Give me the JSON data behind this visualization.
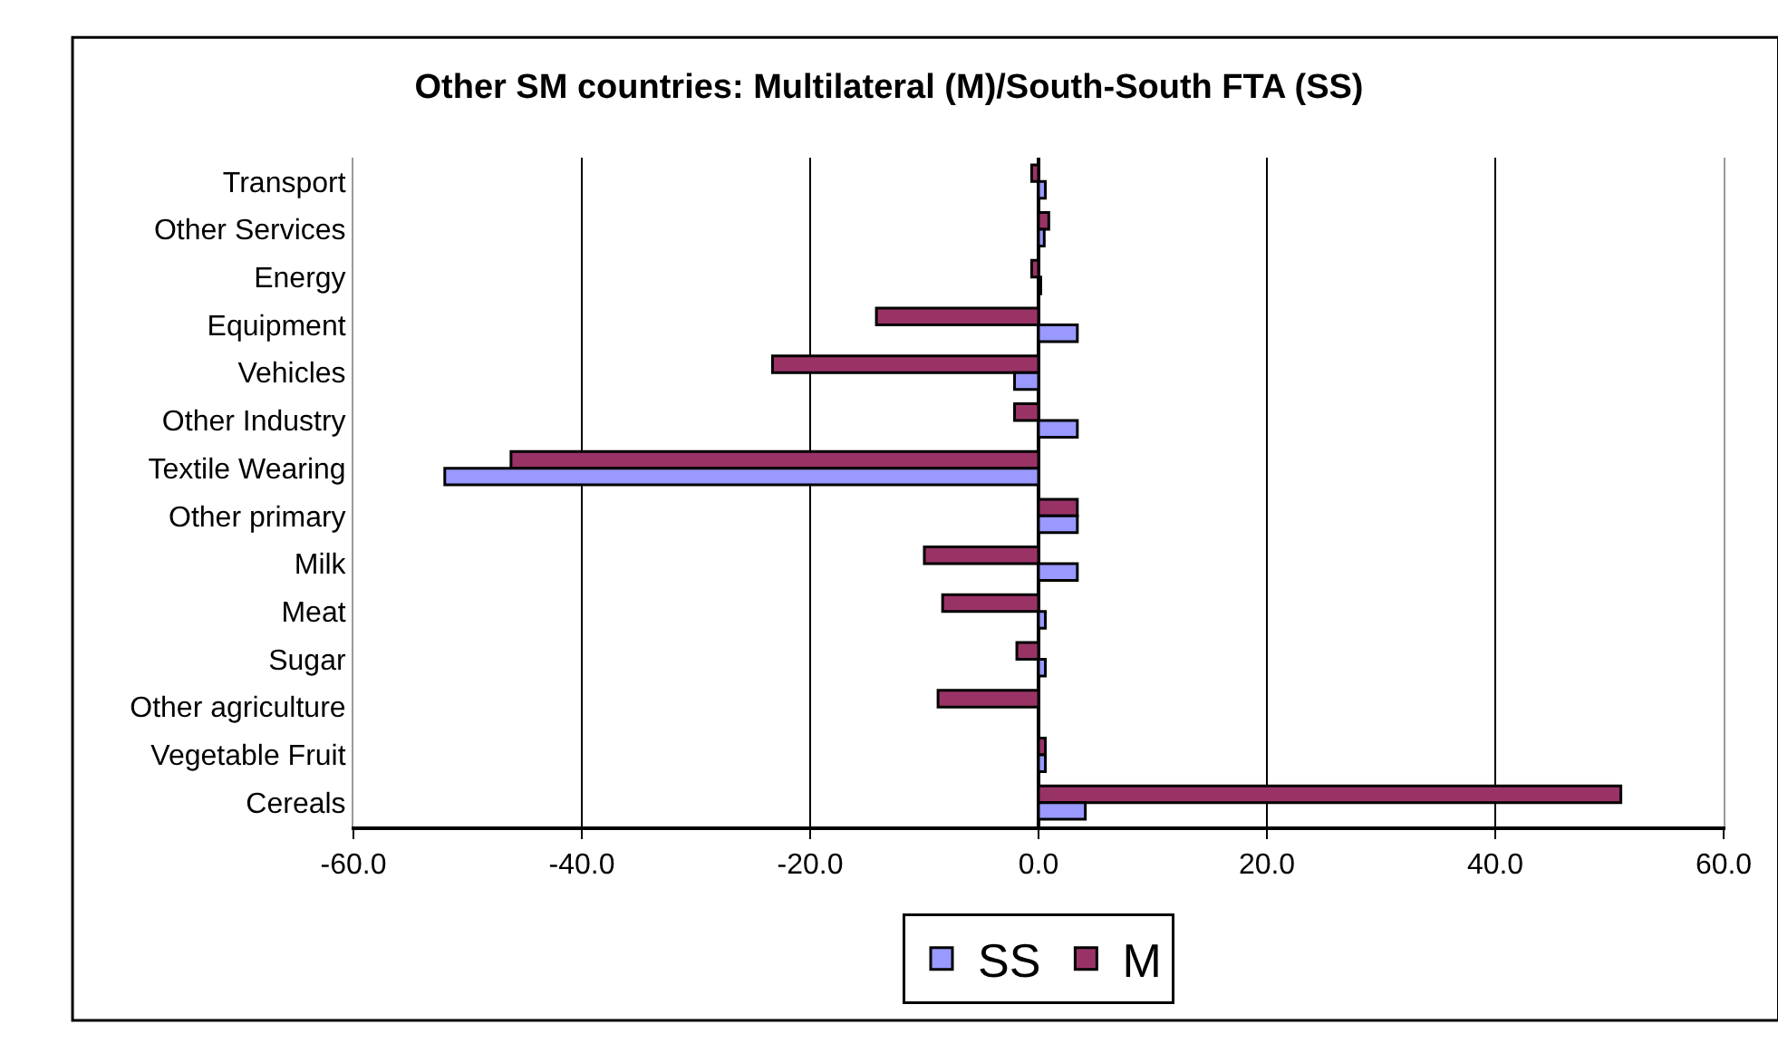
{
  "chart_data": {
    "type": "bar",
    "orientation": "horizontal",
    "title": "Other SM countries: Multilateral (M)/South-South FTA (SS)",
    "categories": [
      "Transport",
      "Other Services",
      "Energy",
      "Equipment",
      "Vehicles",
      "Other Industry",
      "Textile Wearing",
      "Other primary",
      "Milk",
      "Meat",
      "Sugar",
      "Other agriculture",
      "Vegetable Fruit",
      "Cereals"
    ],
    "series": [
      {
        "name": "SS",
        "color": "#9999ff",
        "values": [
          0.6,
          0.5,
          0.2,
          3.4,
          -2.1,
          3.4,
          -52.0,
          3.4,
          3.4,
          0.6,
          0.6,
          null,
          0.6,
          4.1
        ]
      },
      {
        "name": "M",
        "color": "#993366",
        "values": [
          -0.6,
          0.9,
          -0.6,
          -14.2,
          -23.3,
          -2.1,
          -46.2,
          3.4,
          -10.0,
          -8.4,
          -1.9,
          -8.8,
          0.6,
          51.0
        ]
      }
    ],
    "xlim": [
      -60,
      60
    ],
    "xticks": [
      {
        "value": -60,
        "label": "-60.0"
      },
      {
        "value": -40,
        "label": "-40.0"
      },
      {
        "value": -20,
        "label": "-20.0"
      },
      {
        "value": 0,
        "label": "0.0"
      },
      {
        "value": 20,
        "label": "20.0"
      },
      {
        "value": 40,
        "label": "40.0"
      },
      {
        "value": 60,
        "label": "60.0"
      }
    ],
    "grid": "x",
    "legend": "bottom"
  }
}
